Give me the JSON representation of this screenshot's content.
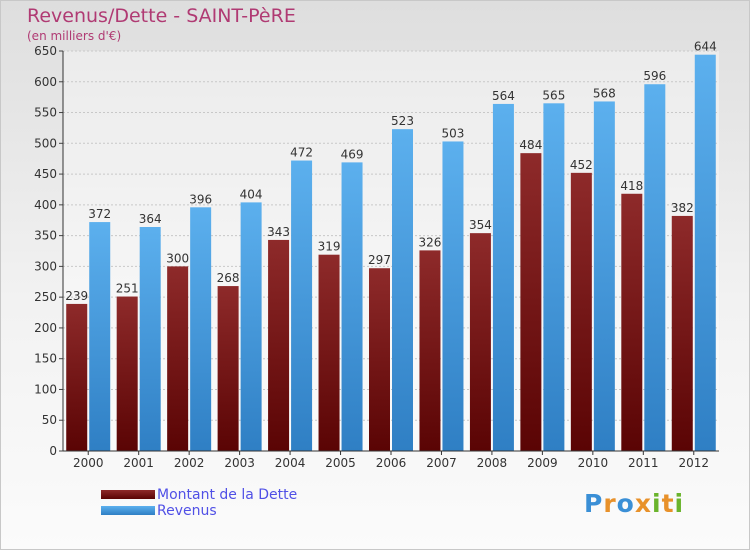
{
  "title": "Revenus/Dette - SAINT-PèRE",
  "subtitle": "(en milliers d'€)",
  "legend": [
    {
      "label": "Montant de la Dette",
      "color": "#7a1414"
    },
    {
      "label": "Revenus",
      "color": "#4aa3e6"
    }
  ],
  "logo": {
    "text": "Proxiti",
    "letters": [
      "P",
      "r",
      "o",
      "x",
      "i",
      "t",
      "i"
    ],
    "colors": [
      "#3a8fd6",
      "#e8912a",
      "#3a8fd6",
      "#e8912a",
      "#6ab42c",
      "#e8912a",
      "#6ab42c"
    ]
  },
  "chart_data": {
    "type": "bar",
    "categories": [
      "2000",
      "2001",
      "2002",
      "2003",
      "2004",
      "2005",
      "2006",
      "2007",
      "2008",
      "2009",
      "2010",
      "2011",
      "2012"
    ],
    "series": [
      {
        "name": "Montant de la Dette",
        "color": "#7a1414",
        "values": [
          239,
          251,
          300,
          268,
          343,
          319,
          297,
          326,
          354,
          484,
          452,
          418,
          382
        ]
      },
      {
        "name": "Revenus",
        "color": "#4aa3e6",
        "values": [
          372,
          364,
          396,
          404,
          472,
          469,
          523,
          503,
          564,
          565,
          568,
          596,
          644
        ]
      }
    ],
    "ylim": [
      0,
      650
    ],
    "yticks": [
      0,
      50,
      100,
      150,
      200,
      250,
      300,
      350,
      400,
      450,
      500,
      550,
      600,
      650
    ],
    "grid": true
  }
}
